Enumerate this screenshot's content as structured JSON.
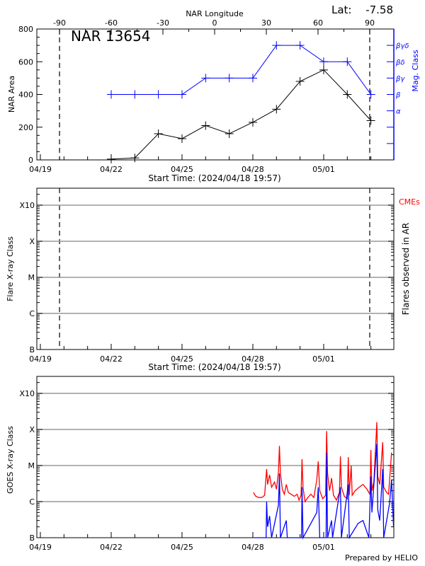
{
  "header": {
    "lat_label": "Lat:",
    "lat_value": "-7.58",
    "footer": "Prepared by HELIO"
  },
  "colors": {
    "axis": "#000000",
    "mag_class": "#0000ff",
    "grid": "#999999",
    "long_channel": "#ff0000",
    "short_channel": "#0000ff",
    "cme": "#ff0000"
  },
  "chart_data": [
    {
      "type": "line",
      "title": "NAR 13654",
      "xlabel": "Start Time: (2024/04/18 19:57)",
      "ylabel": "NAR Area",
      "y2label": "Mag. Class",
      "top_axis_label": "NAR Longitude",
      "x_tick_labels": [
        "04/19",
        "04/22",
        "04/25",
        "04/28",
        "05/01"
      ],
      "top_ticks": [
        "-90",
        "-60",
        "-30",
        "0",
        "30",
        "60",
        "90"
      ],
      "y_ticks": [
        "0",
        "200",
        "400",
        "600",
        "800"
      ],
      "ylim": [
        0,
        800
      ],
      "limb_longitudes": [
        -90,
        90
      ],
      "mag_class_levels": [
        {
          "label": "α",
          "value": 300
        },
        {
          "label": "β",
          "value": 400
        },
        {
          "label": "βγ",
          "value": 500
        },
        {
          "label": "βδ",
          "value": 600
        },
        {
          "label": "βγδ",
          "value": 700
        }
      ],
      "series": [
        {
          "name": "NAR Area",
          "x": [
            "04/22",
            "04/23",
            "04/24",
            "04/25",
            "04/26",
            "04/27",
            "04/28",
            "04/29",
            "04/30",
            "05/01",
            "05/02",
            "05/03"
          ],
          "values": [
            5,
            12,
            160,
            130,
            210,
            160,
            230,
            310,
            480,
            550,
            400,
            240
          ]
        },
        {
          "name": "Mag. Class",
          "x": [
            "04/22",
            "04/23",
            "04/24",
            "04/25",
            "04/26",
            "04/27",
            "04/28",
            "04/29",
            "04/30",
            "05/01",
            "05/02",
            "05/03"
          ],
          "values": [
            "β",
            "β",
            "β",
            "β",
            "βγ",
            "βγ",
            "βγ",
            "βγδ",
            "βγδ",
            "βδ",
            "βδ",
            "β"
          ]
        }
      ]
    },
    {
      "type": "scatter",
      "xlabel": "Start Time: (2024/04/18 19:57)",
      "ylabel": "Flare X-ray Class",
      "y2label": "Flares observed in AR",
      "legend": "CMEs",
      "x_tick_labels": [
        "04/19",
        "04/22",
        "04/25",
        "04/28",
        "05/01"
      ],
      "y_ticks": [
        "B",
        "C",
        "M",
        "X",
        "X10"
      ],
      "scale": "log",
      "grid": true,
      "series": []
    },
    {
      "type": "line",
      "ylabel": "GOES X-ray Class",
      "x_tick_labels": [
        "04/19",
        "04/22",
        "04/25",
        "04/28",
        "05/01"
      ],
      "y_ticks": [
        "B",
        "C",
        "M",
        "X",
        "X10"
      ],
      "scale": "log",
      "grid": true,
      "series": [
        {
          "color": "#ff0000",
          "points": [
            [
              "04/28 00:30",
              1.8e-06
            ],
            [
              "04/28 03:00",
              1.4e-06
            ],
            [
              "04/28 06:00",
              1.3e-06
            ],
            [
              "04/28 09:00",
              1.3e-06
            ],
            [
              "04/28 12:00",
              1.5e-06
            ],
            [
              "04/28 14:00",
              8e-06
            ],
            [
              "04/28 15:00",
              3e-06
            ],
            [
              "04/28 17:00",
              5.5e-06
            ],
            [
              "04/28 19:00",
              2.5e-06
            ],
            [
              "04/28 22:00",
              3.5e-06
            ],
            [
              "04/29 00:00",
              2.2e-06
            ],
            [
              "04/29 02:00",
              6.5e-06
            ],
            [
              "04/29 03:00",
              3.5e-05
            ],
            [
              "04/29 04:00",
              6e-06
            ],
            [
              "04/29 06:00",
              2.2e-06
            ],
            [
              "04/29 08:00",
              1.6e-06
            ],
            [
              "04/29 10:00",
              3e-06
            ],
            [
              "04/29 12:00",
              1.8e-06
            ],
            [
              "04/29 15:00",
              1.6e-06
            ],
            [
              "04/29 18:00",
              1.4e-06
            ],
            [
              "04/29 21:00",
              1.6e-06
            ],
            [
              "04/29 23:00",
              1.1e-06
            ],
            [
              "04/30 01:00",
              1.5e-06
            ],
            [
              "04/30 02:00",
              1.5e-05
            ],
            [
              "04/30 03:00",
              2.5e-06
            ],
            [
              "04/30 05:00",
              1e-06
            ],
            [
              "04/30 08:00",
              1.3e-06
            ],
            [
              "04/30 11:00",
              1.6e-06
            ],
            [
              "04/30 14:00",
              1.3e-06
            ],
            [
              "04/30 17:00",
              4e-06
            ],
            [
              "04/30 18:30",
              1.3e-05
            ],
            [
              "04/30 20:00",
              2e-06
            ],
            [
              "04/30 23:00",
              1.2e-06
            ],
            [
              "05/01 02:00",
              1.5e-06
            ],
            [
              "05/01 03:00",
              9e-05
            ],
            [
              "05/01 04:00",
              6e-06
            ],
            [
              "05/01 06:00",
              2e-06
            ],
            [
              "05/01 08:00",
              4.5e-06
            ],
            [
              "05/01 10:00",
              1.5e-06
            ],
            [
              "05/01 13:00",
              1.1e-06
            ],
            [
              "05/01 16:00",
              1.8e-06
            ],
            [
              "05/01 17:00",
              1.8e-05
            ],
            [
              "05/01 18:00",
              2.5e-06
            ],
            [
              "05/01 21:00",
              1.4e-06
            ],
            [
              "05/02 00:00",
              1.2e-06
            ],
            [
              "05/02 01:00",
              1.7e-05
            ],
            [
              "05/02 02:00",
              1.5e-06
            ],
            [
              "05/02 04:00",
              1e-05
            ],
            [
              "05/02 05:00",
              1.5e-06
            ],
            [
              "05/02 08:00",
              2e-06
            ],
            [
              "05/02 12:00",
              2.5e-06
            ],
            [
              "05/02 16:00",
              3e-06
            ],
            [
              "05/02 20:00",
              2.2e-06
            ],
            [
              "05/02 23:00",
              1.6e-06
            ],
            [
              "05/03 00:00",
              2.7e-05
            ],
            [
              "05/03 01:00",
              2e-06
            ],
            [
              "05/03 03:00",
              3.5e-06
            ],
            [
              "05/03 06:00",
              0.00016
            ],
            [
              "05/03 07:00",
              5e-06
            ],
            [
              "05/03 09:00",
              3e-06
            ],
            [
              "05/03 12:00",
              4.4e-05
            ],
            [
              "05/03 13:00",
              2.5e-06
            ],
            [
              "05/03 16:00",
              1.8e-06
            ],
            [
              "05/03 18:00",
              1.6e-06
            ],
            [
              "05/03 19:00",
              4e-06
            ],
            [
              "05/03 21:00",
              2.3e-05
            ]
          ]
        },
        {
          "color": "#0000ff",
          "points": [
            [
              "04/28 01:00",
              1e-07
            ],
            [
              "04/28 13:30",
              1e-07
            ],
            [
              "04/28 14:00",
              1e-06
            ],
            [
              "04/28 15:00",
              2e-07
            ],
            [
              "04/28 17:00",
              4e-07
            ],
            [
              "04/28 19:00",
              1e-07
            ],
            [
              "04/29 02:00",
              8e-07
            ],
            [
              "04/29 03:00",
              6e-06
            ],
            [
              "04/29 04:00",
              1e-07
            ],
            [
              "04/29 10:00",
              3e-07
            ],
            [
              "04/29 11:00",
              1e-07
            ],
            [
              "04/30 01:30",
              1e-07
            ],
            [
              "04/30 02:00",
              2.5e-06
            ],
            [
              "04/30 03:00",
              1e-07
            ],
            [
              "04/30 17:00",
              5e-07
            ],
            [
              "04/30 18:30",
              2.5e-06
            ],
            [
              "04/30 20:00",
              1e-07
            ],
            [
              "05/01 02:30",
              1e-07
            ],
            [
              "05/01 03:00",
              2.3e-05
            ],
            [
              "05/01 04:00",
              1e-07
            ],
            [
              "05/01 08:00",
              3e-07
            ],
            [
              "05/01 09:00",
              1e-07
            ],
            [
              "05/01 17:00",
              2.5e-06
            ],
            [
              "05/01 18:00",
              1e-07
            ],
            [
              "05/02 01:00",
              3e-06
            ],
            [
              "05/02 02:00",
              1e-07
            ],
            [
              "05/02 11:00",
              2.5e-07
            ],
            [
              "05/02 16:00",
              3e-07
            ],
            [
              "05/02 22:00",
              1e-07
            ],
            [
              "05/03 00:00",
              5e-06
            ],
            [
              "05/03 01:00",
              5e-07
            ],
            [
              "05/03 06:00",
              4e-05
            ],
            [
              "05/03 07:00",
              6e-07
            ],
            [
              "05/03 09:00",
              3e-07
            ],
            [
              "05/03 12:00",
              8e-06
            ],
            [
              "05/03 13:00",
              1e-07
            ],
            [
              "05/03 19:00",
              9e-07
            ],
            [
              "05/03 21:00",
              4e-06
            ],
            [
              "05/03 23:00",
              2e-07
            ]
          ]
        }
      ]
    }
  ]
}
